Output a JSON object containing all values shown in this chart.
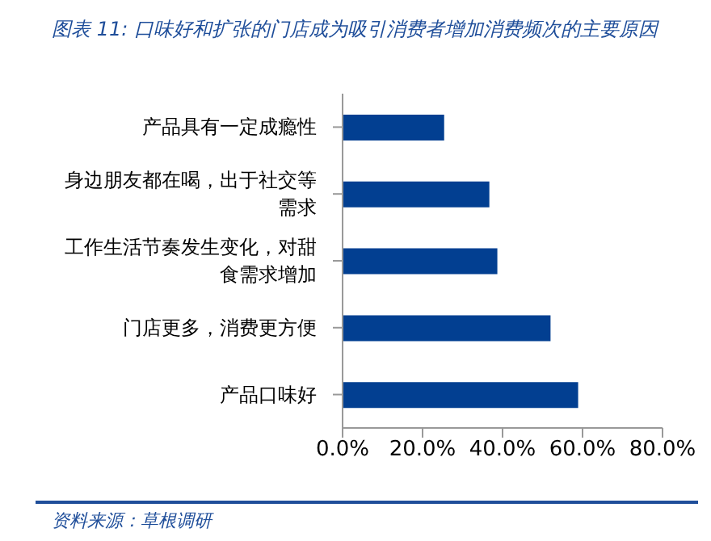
{
  "chart_data": {
    "type": "bar",
    "orientation": "horizontal",
    "title": "图表 11:  口味好和扩张的门店成为吸引消费者增加消费频次的主要原因",
    "categories": [
      "产品具有一定成瘾性",
      "身边朋友都在喝，出于社交等需求",
      "工作生活节奏发生变化，对甜食需求增加",
      "门店更多，消费更方便",
      "产品口味好"
    ],
    "values": [
      25.4,
      36.7,
      38.7,
      52.0,
      58.9
    ],
    "color": "#023f91",
    "xlim": [
      0,
      80
    ],
    "xticks": [
      {
        "value": 0,
        "label": "0.0%"
      },
      {
        "value": 20,
        "label": "20.0%"
      },
      {
        "value": 40,
        "label": "40.0%"
      },
      {
        "value": 60,
        "label": "60.0%"
      },
      {
        "value": 80,
        "label": "80.0%"
      }
    ],
    "grid": false,
    "legend": false,
    "annotations": [
      "资料来源：草根调研"
    ]
  }
}
